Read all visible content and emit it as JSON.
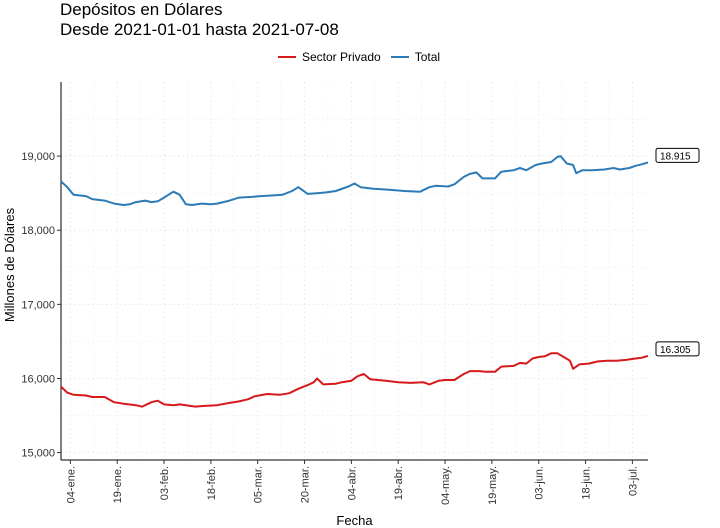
{
  "chart_data": {
    "type": "line",
    "title": "Depósitos en Dólares",
    "subtitle": "Desde 2021-01-01 hasta 2021-07-08",
    "xlabel": "Fecha",
    "ylabel": "Millones de Dólares",
    "xlim": [
      0,
      188
    ],
    "ylim": [
      14900,
      20000
    ],
    "y_ticks": [
      {
        "value": 15000,
        "label": "15,000"
      },
      {
        "value": 16000,
        "label": "16,000"
      },
      {
        "value": 17000,
        "label": "17,000"
      },
      {
        "value": 18000,
        "label": "18,000"
      },
      {
        "value": 19000,
        "label": "19,000"
      }
    ],
    "x_ticks": [
      {
        "day": 3,
        "label": "04-ene."
      },
      {
        "day": 18,
        "label": "19-ene."
      },
      {
        "day": 33,
        "label": "03-feb."
      },
      {
        "day": 48,
        "label": "18-feb."
      },
      {
        "day": 63,
        "label": "05-mar."
      },
      {
        "day": 78,
        "label": "20-mar."
      },
      {
        "day": 93,
        "label": "04-abr."
      },
      {
        "day": 108,
        "label": "19-abr."
      },
      {
        "day": 123,
        "label": "04-may."
      },
      {
        "day": 138,
        "label": "19-may."
      },
      {
        "day": 153,
        "label": "03-jun."
      },
      {
        "day": 168,
        "label": "18-jun."
      },
      {
        "day": 183,
        "label": "03-jul."
      }
    ],
    "grid": true,
    "legend_position": "top",
    "series": [
      {
        "name": "Sector Privado",
        "color": "#d7191c",
        "end_label": "16.305",
        "points": [
          [
            0,
            15890
          ],
          [
            2,
            15810
          ],
          [
            4,
            15780
          ],
          [
            8,
            15770
          ],
          [
            10,
            15750
          ],
          [
            14,
            15750
          ],
          [
            17,
            15680
          ],
          [
            20,
            15660
          ],
          [
            24,
            15640
          ],
          [
            26,
            15620
          ],
          [
            29,
            15680
          ],
          [
            31,
            15700
          ],
          [
            33,
            15650
          ],
          [
            36,
            15640
          ],
          [
            38,
            15650
          ],
          [
            40,
            15640
          ],
          [
            43,
            15620
          ],
          [
            46,
            15630
          ],
          [
            50,
            15640
          ],
          [
            54,
            15670
          ],
          [
            57,
            15690
          ],
          [
            60,
            15720
          ],
          [
            62,
            15760
          ],
          [
            66,
            15790
          ],
          [
            70,
            15780
          ],
          [
            73,
            15800
          ],
          [
            76,
            15860
          ],
          [
            79,
            15910
          ],
          [
            81,
            15950
          ],
          [
            82,
            16000
          ],
          [
            84,
            15920
          ],
          [
            88,
            15930
          ],
          [
            90,
            15950
          ],
          [
            93,
            15970
          ],
          [
            95,
            16030
          ],
          [
            97,
            16060
          ],
          [
            99,
            15990
          ],
          [
            104,
            15970
          ],
          [
            108,
            15950
          ],
          [
            112,
            15940
          ],
          [
            116,
            15950
          ],
          [
            118,
            15920
          ],
          [
            121,
            15970
          ],
          [
            123,
            15980
          ],
          [
            126,
            15980
          ],
          [
            129,
            16060
          ],
          [
            131,
            16100
          ],
          [
            134,
            16100
          ],
          [
            136,
            16090
          ],
          [
            139,
            16090
          ],
          [
            141,
            16160
          ],
          [
            145,
            16170
          ],
          [
            147,
            16210
          ],
          [
            149,
            16200
          ],
          [
            151,
            16270
          ],
          [
            153,
            16290
          ],
          [
            155,
            16300
          ],
          [
            157,
            16340
          ],
          [
            159,
            16340
          ],
          [
            161,
            16290
          ],
          [
            163,
            16240
          ],
          [
            164,
            16130
          ],
          [
            166,
            16190
          ],
          [
            169,
            16200
          ],
          [
            172,
            16230
          ],
          [
            175,
            16240
          ],
          [
            178,
            16240
          ],
          [
            181,
            16250
          ],
          [
            184,
            16270
          ],
          [
            186,
            16280
          ],
          [
            188,
            16305
          ]
        ]
      },
      {
        "name": "Total",
        "color": "#2c7bb6",
        "end_label": "18.915",
        "points": [
          [
            0,
            18660
          ],
          [
            2,
            18580
          ],
          [
            4,
            18480
          ],
          [
            8,
            18460
          ],
          [
            10,
            18420
          ],
          [
            14,
            18400
          ],
          [
            17,
            18360
          ],
          [
            20,
            18340
          ],
          [
            22,
            18350
          ],
          [
            24,
            18380
          ],
          [
            27,
            18400
          ],
          [
            29,
            18380
          ],
          [
            31,
            18390
          ],
          [
            33,
            18440
          ],
          [
            36,
            18520
          ],
          [
            38,
            18480
          ],
          [
            40,
            18350
          ],
          [
            42,
            18340
          ],
          [
            45,
            18360
          ],
          [
            48,
            18350
          ],
          [
            50,
            18360
          ],
          [
            54,
            18400
          ],
          [
            57,
            18440
          ],
          [
            61,
            18450
          ],
          [
            64,
            18460
          ],
          [
            68,
            18470
          ],
          [
            71,
            18480
          ],
          [
            74,
            18530
          ],
          [
            76,
            18580
          ],
          [
            79,
            18490
          ],
          [
            82,
            18500
          ],
          [
            85,
            18510
          ],
          [
            88,
            18530
          ],
          [
            92,
            18590
          ],
          [
            94,
            18630
          ],
          [
            96,
            18580
          ],
          [
            100,
            18560
          ],
          [
            104,
            18550
          ],
          [
            107,
            18540
          ],
          [
            110,
            18530
          ],
          [
            115,
            18520
          ],
          [
            118,
            18580
          ],
          [
            120,
            18600
          ],
          [
            124,
            18590
          ],
          [
            126,
            18620
          ],
          [
            129,
            18720
          ],
          [
            131,
            18760
          ],
          [
            133,
            18780
          ],
          [
            135,
            18700
          ],
          [
            139,
            18700
          ],
          [
            141,
            18790
          ],
          [
            145,
            18810
          ],
          [
            147,
            18840
          ],
          [
            149,
            18810
          ],
          [
            152,
            18880
          ],
          [
            154,
            18900
          ],
          [
            157,
            18920
          ],
          [
            159,
            18990
          ],
          [
            160,
            19000
          ],
          [
            162,
            18900
          ],
          [
            164,
            18880
          ],
          [
            165,
            18770
          ],
          [
            167,
            18810
          ],
          [
            170,
            18810
          ],
          [
            174,
            18820
          ],
          [
            177,
            18840
          ],
          [
            179,
            18820
          ],
          [
            182,
            18840
          ],
          [
            184,
            18870
          ],
          [
            186,
            18890
          ],
          [
            188,
            18915
          ]
        ]
      }
    ]
  }
}
